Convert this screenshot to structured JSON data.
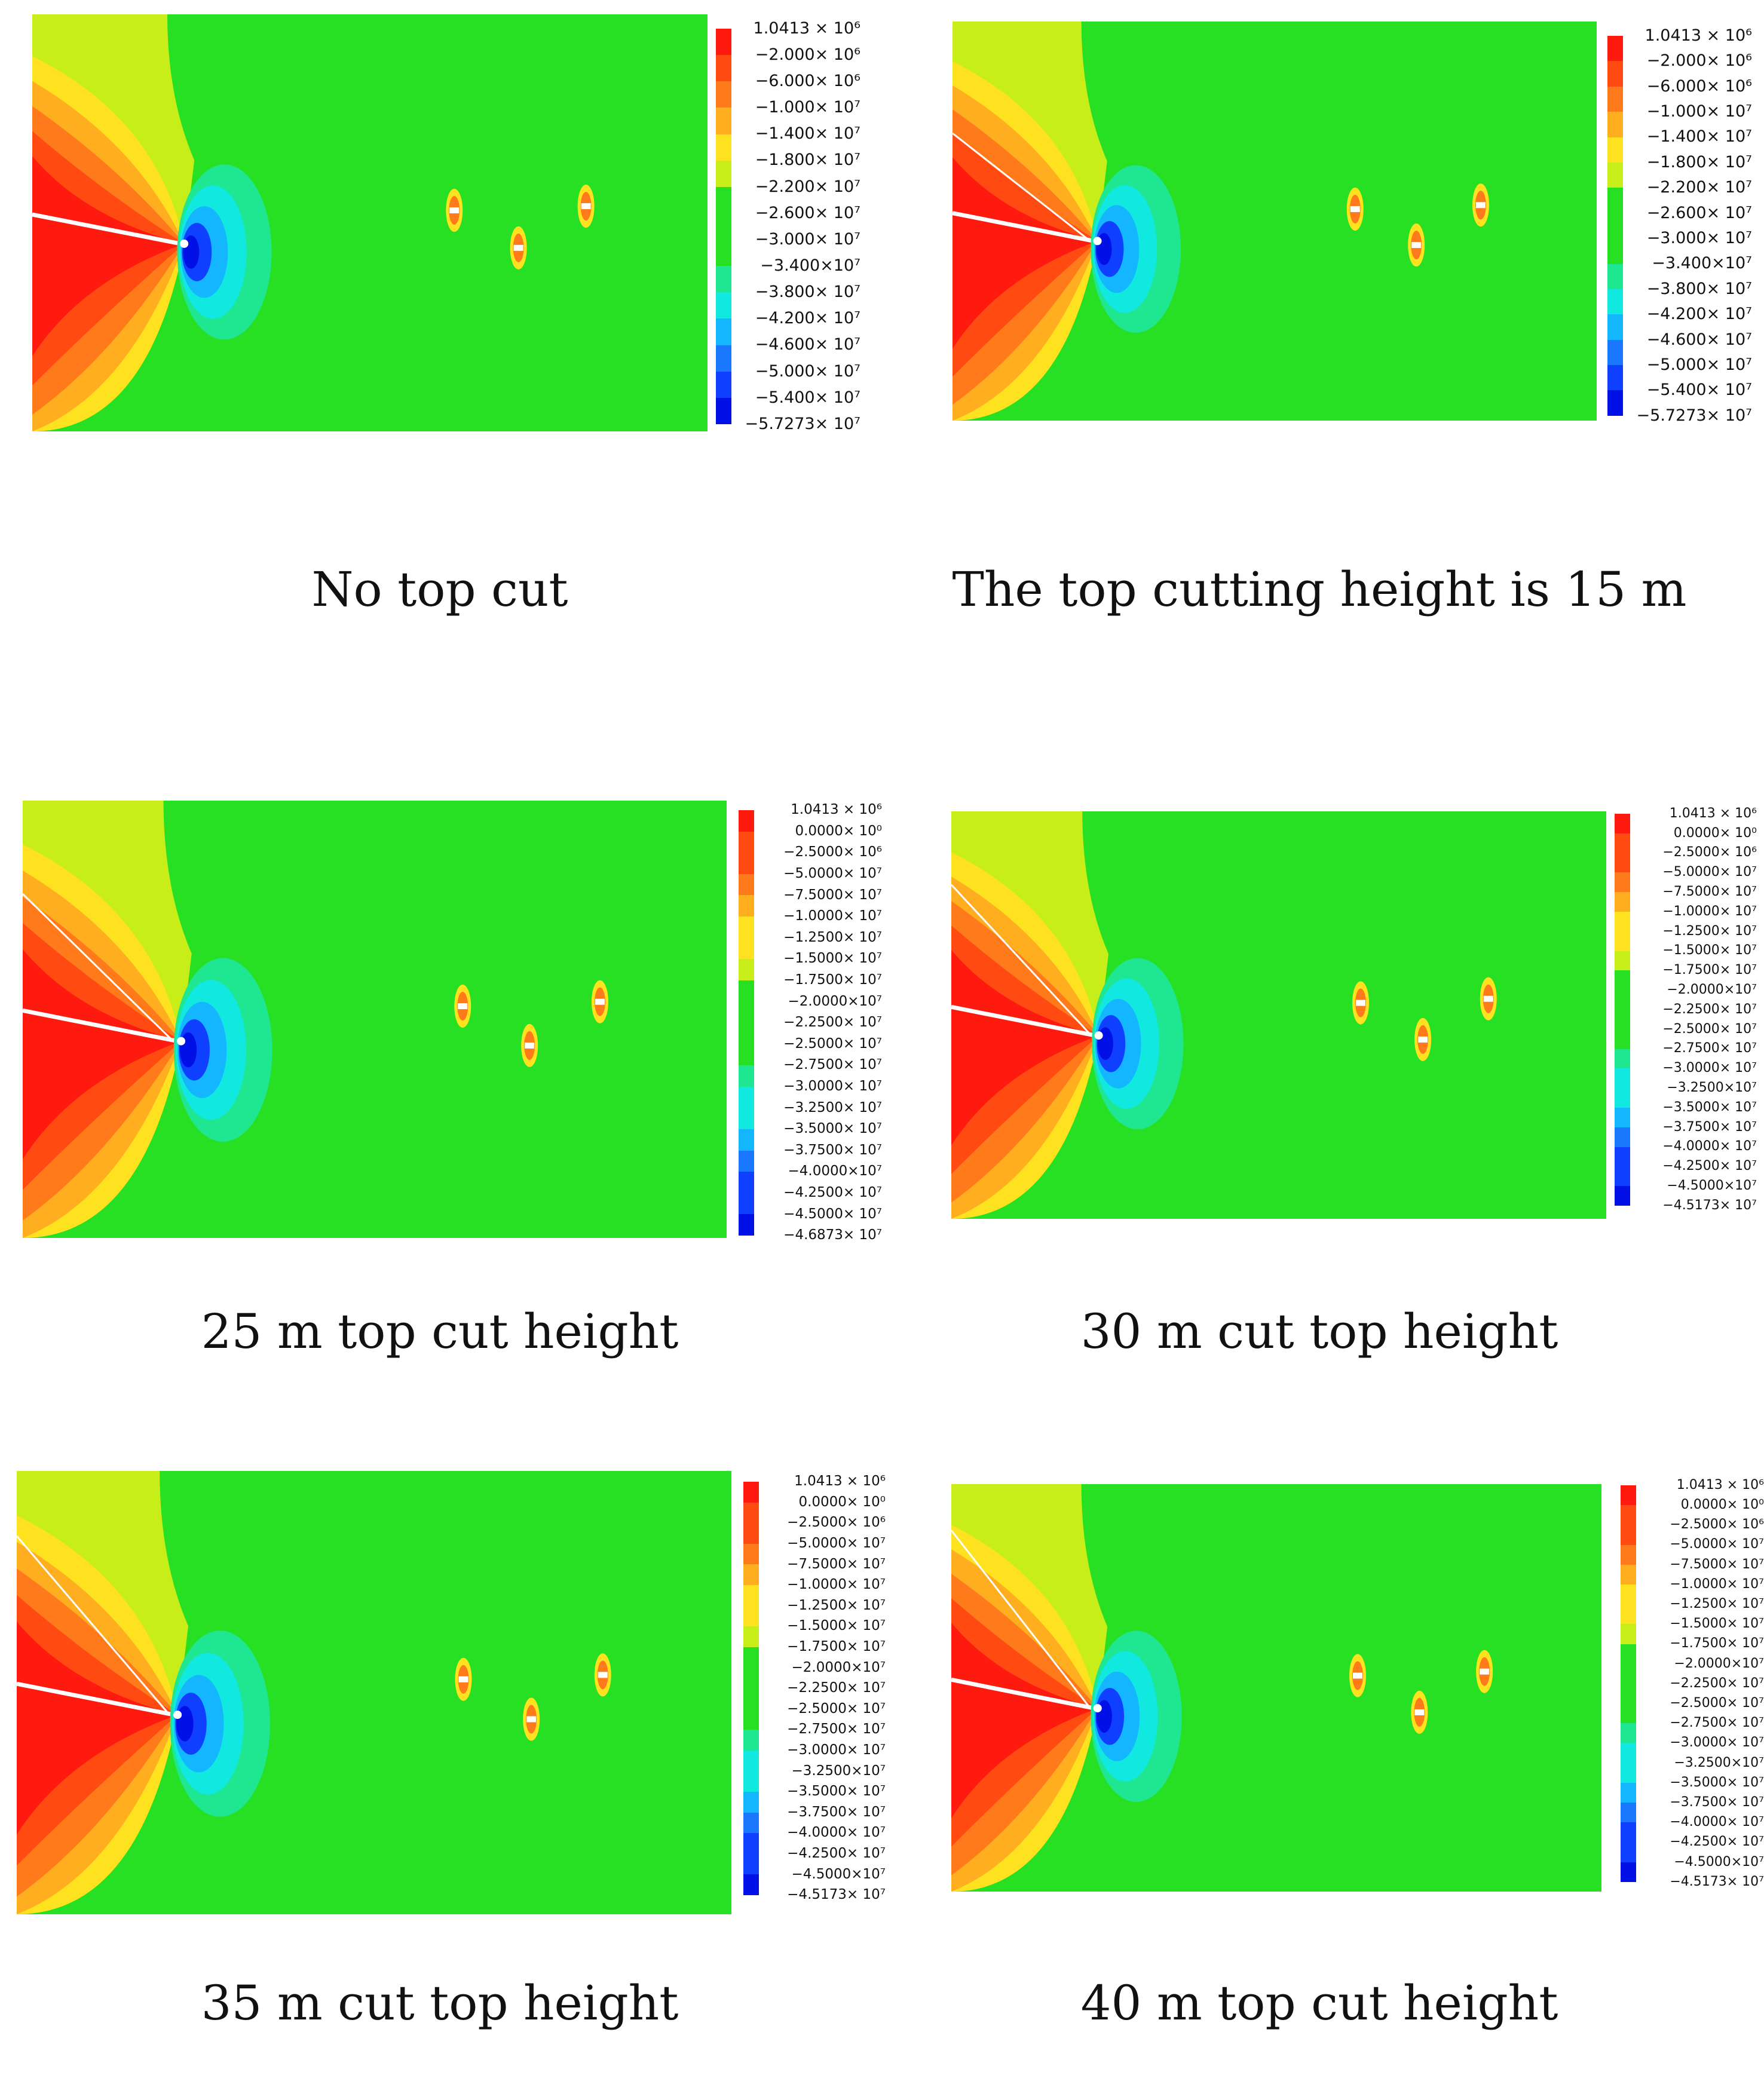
{
  "panels": [
    {
      "caption": "No top cut",
      "legend": [
        "1.0413 × 10⁶",
        "−2.000× 10⁶",
        "−6.000× 10⁶",
        "−1.000× 10⁷",
        "−1.400× 10⁷",
        "−1.800× 10⁷",
        "−2.200× 10⁷",
        "−2.600× 10⁷",
        "−3.000× 10⁷",
        "−3.400×10⁷",
        "−3.800× 10⁷",
        "−4.200× 10⁷",
        "−4.600× 10⁷",
        "−5.000× 10⁷",
        "−5.400× 10⁷",
        "−5.7273× 10⁷"
      ]
    },
    {
      "caption": "The top cutting height is 15 m",
      "legend": [
        "1.0413 × 10⁶",
        "−2.000× 10⁶",
        "−6.000× 10⁶",
        "−1.000× 10⁷",
        "−1.400× 10⁷",
        "−1.800× 10⁷",
        "−2.200× 10⁷",
        "−2.600× 10⁷",
        "−3.000× 10⁷",
        "−3.400×10⁷",
        "−3.800× 10⁷",
        "−4.200× 10⁷",
        "−4.600× 10⁷",
        "−5.000× 10⁷",
        "−5.400× 10⁷",
        "−5.7273× 10⁷"
      ]
    },
    {
      "caption": "25 m top cut height",
      "legend": [
        "1.0413 × 10⁶",
        "0.0000× 10⁰",
        "−2.5000× 10⁶",
        "−5.0000× 10⁷",
        "−7.5000× 10⁷",
        "−1.0000× 10⁷",
        "−1.2500× 10⁷",
        "−1.5000× 10⁷",
        "−1.7500× 10⁷",
        "−2.0000×10⁷",
        "−2.2500× 10⁷",
        "−2.5000× 10⁷",
        "−2.7500× 10⁷",
        "−3.0000× 10⁷",
        "−3.2500× 10⁷",
        "−3.5000× 10⁷",
        "−3.7500× 10⁷",
        "−4.0000×10⁷",
        "−4.2500× 10⁷",
        "−4.5000× 10⁷",
        "−4.6873× 10⁷"
      ]
    },
    {
      "caption": "30 m cut top height",
      "legend": [
        "1.0413 × 10⁶",
        "0.0000× 10⁰",
        "−2.5000× 10⁶",
        "−5.0000× 10⁷",
        "−7.5000× 10⁷",
        "−1.0000× 10⁷",
        "−1.2500× 10⁷",
        "−1.5000× 10⁷",
        "−1.7500× 10⁷",
        "−2.0000×10⁷",
        "−2.2500× 10⁷",
        "−2.5000× 10⁷",
        "−2.7500× 10⁷",
        "−3.0000× 10⁷",
        "−3.2500×10⁷",
        "−3.5000× 10⁷",
        "−3.7500× 10⁷",
        "−4.0000× 10⁷",
        "−4.2500× 10⁷",
        "−4.5000×10⁷",
        "−4.5173× 10⁷"
      ]
    },
    {
      "caption": "35 m cut top height",
      "legend": [
        "1.0413 × 10⁶",
        "0.0000× 10⁰",
        "−2.5000× 10⁶",
        "−5.0000× 10⁷",
        "−7.5000× 10⁷",
        "−1.0000× 10⁷",
        "−1.2500× 10⁷",
        "−1.5000× 10⁷",
        "−1.7500× 10⁷",
        "−2.0000×10⁷",
        "−2.2500× 10⁷",
        "−2.5000× 10⁷",
        "−2.7500× 10⁷",
        "−3.0000× 10⁷",
        "−3.2500×10⁷",
        "−3.5000× 10⁷",
        "−3.7500× 10⁷",
        "−4.0000× 10⁷",
        "−4.2500× 10⁷",
        "−4.5000×10⁷",
        "−4.5173× 10⁷"
      ]
    },
    {
      "caption": "40 m top cut height",
      "legend": [
        "1.0413 × 10⁶",
        "0.0000× 10⁰",
        "−2.5000× 10⁶",
        "−5.0000× 10⁷",
        "−7.5000× 10⁷",
        "−1.0000× 10⁷",
        "−1.2500× 10⁷",
        "−1.5000× 10⁷",
        "−1.7500× 10⁷",
        "−2.0000×10⁷",
        "−2.2500× 10⁷",
        "−2.5000× 10⁷",
        "−2.7500× 10⁷",
        "−3.0000× 10⁷",
        "−3.2500×10⁷",
        "−3.5000× 10⁷",
        "−3.7500× 10⁷",
        "−4.0000× 10⁷",
        "−4.2500× 10⁷",
        "−4.5000×10⁷",
        "−4.5173× 10⁷"
      ]
    }
  ],
  "colors": {
    "field_green": "#27e024",
    "scale_top_red": "#ff2010",
    "scale_bottom_blue": "#0010e6"
  }
}
